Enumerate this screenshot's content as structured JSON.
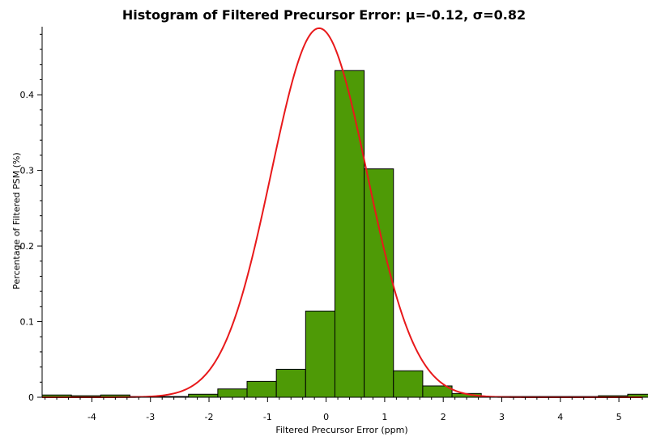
{
  "chart_data": {
    "type": "bar",
    "title": "Histogram of Filtered Precursor Error: μ=-0.12, σ=0.82",
    "xlabel": "Filtered Precursor Error (ppm)",
    "ylabel": "Percentage of Filtered PSM (%)",
    "xlim": [
      -4.85,
      5.4
    ],
    "ylim": [
      0,
      0.49
    ],
    "xticks": [
      "-4",
      "-3",
      "-2",
      "-1",
      "0",
      "1",
      "2",
      "3",
      "4",
      "5"
    ],
    "yticks": [
      "0",
      "0.1",
      "0.2",
      "0.3",
      "0.4"
    ],
    "grid": false,
    "bin_width": 0.5,
    "bins": [
      {
        "start": -4.85,
        "value": 0.003
      },
      {
        "start": -4.35,
        "value": 0.002
      },
      {
        "start": -3.85,
        "value": 0.003
      },
      {
        "start": -3.35,
        "value": 0.001
      },
      {
        "start": -2.85,
        "value": 0.001
      },
      {
        "start": -2.35,
        "value": 0.004
      },
      {
        "start": -1.85,
        "value": 0.011
      },
      {
        "start": -1.35,
        "value": 0.021
      },
      {
        "start": -0.85,
        "value": 0.037
      },
      {
        "start": -0.35,
        "value": 0.114
      },
      {
        "start": 0.15,
        "value": 0.432
      },
      {
        "start": 0.65,
        "value": 0.302
      },
      {
        "start": 1.15,
        "value": 0.035
      },
      {
        "start": 1.65,
        "value": 0.015
      },
      {
        "start": 2.15,
        "value": 0.005
      },
      {
        "start": 2.65,
        "value": 0.001
      },
      {
        "start": 3.15,
        "value": 0.001
      },
      {
        "start": 3.65,
        "value": 0.001
      },
      {
        "start": 4.15,
        "value": 0.001
      },
      {
        "start": 4.65,
        "value": 0.002
      },
      {
        "start": 5.15,
        "value": 0.004
      }
    ],
    "fit_curve": {
      "type": "normal",
      "mu": -0.12,
      "sigma": 0.82,
      "peak": 0.488,
      "color": "#e8191b"
    },
    "bar_color": "#4e9a06",
    "bar_edge_color": "#000000"
  }
}
